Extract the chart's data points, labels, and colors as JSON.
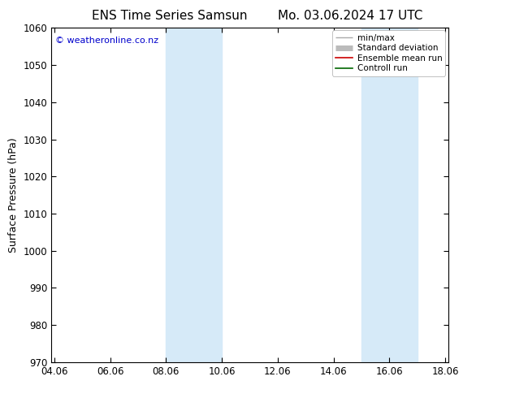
{
  "title_left": "ENS Time Series Samsun",
  "title_right": "Mo. 03.06.2024 17 UTC",
  "ylabel": "Surface Pressure (hPa)",
  "ylim": [
    970,
    1060
  ],
  "yticks": [
    970,
    980,
    990,
    1000,
    1010,
    1020,
    1030,
    1040,
    1050,
    1060
  ],
  "xtick_labels": [
    "04.06",
    "06.06",
    "08.06",
    "10.06",
    "12.06",
    "14.06",
    "16.06",
    "18.06"
  ],
  "xtick_positions": [
    0,
    2,
    4,
    6,
    8,
    10,
    12,
    14
  ],
  "xlim": [
    -0.1,
    14.1
  ],
  "shaded_bands": [
    {
      "x_start": 4.0,
      "x_end": 6.0
    },
    {
      "x_start": 11.0,
      "x_end": 13.0
    }
  ],
  "shade_color": "#d6eaf8",
  "copyright_text": "© weatheronline.co.nz",
  "copyright_color": "#0000cc",
  "legend_entries": [
    {
      "label": "min/max",
      "color": "#aaaaaa",
      "lw": 1.0
    },
    {
      "label": "Standard deviation",
      "color": "#bbbbbb",
      "lw": 5
    },
    {
      "label": "Ensemble mean run",
      "color": "#cc0000",
      "lw": 1.2
    },
    {
      "label": "Controll run",
      "color": "#006600",
      "lw": 1.2
    }
  ],
  "bg_color": "#ffffff",
  "title_fontsize": 11,
  "axis_fontsize": 9,
  "tick_fontsize": 8.5,
  "legend_fontsize": 7.5
}
